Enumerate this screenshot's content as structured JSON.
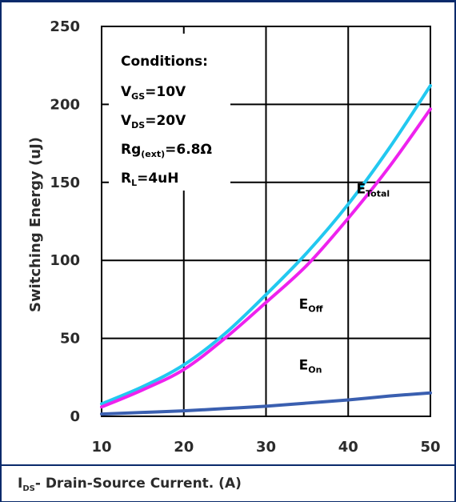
{
  "chart_data": {
    "type": "line",
    "xlabel": {
      "main": "I",
      "sub": "DS",
      "rest": "- Drain-Source Current. (A)"
    },
    "ylabel": "Switching Energy (uJ)",
    "xlim": [
      10,
      50
    ],
    "ylim": [
      0,
      250
    ],
    "x_ticks": [
      "10",
      "20",
      "30",
      "40",
      "50"
    ],
    "y_ticks": [
      "0",
      "50",
      "100",
      "150",
      "200",
      "250"
    ],
    "grid": true,
    "conditions": {
      "title": "Conditions:",
      "lines": [
        {
          "main": "V",
          "sub": "GS",
          "rest": "=10V"
        },
        {
          "main": "V",
          "sub": "DS",
          "rest": "=20V"
        },
        {
          "main": "Rg",
          "sub": "(ext)",
          "rest": "=6.8Ω"
        },
        {
          "main": "R",
          "sub": "L",
          "rest": "=4uH"
        }
      ]
    },
    "series": [
      {
        "name": "E_Total",
        "label_main": "E",
        "label_sub": "Total",
        "color": "#22c8f0",
        "x": [
          10,
          15,
          20,
          25,
          30,
          35,
          40,
          45,
          50
        ],
        "y": [
          8,
          19,
          33,
          53,
          78,
          105,
          136,
          172,
          212
        ]
      },
      {
        "name": "E_Off",
        "label_main": "E",
        "label_sub": "Off",
        "color": "#ee22ee",
        "x": [
          10,
          15,
          20,
          25,
          30,
          35,
          40,
          45,
          50
        ],
        "y": [
          6,
          17,
          30,
          50,
          73,
          97,
          127,
          160,
          197
        ]
      },
      {
        "name": "E_On",
        "label_main": "E",
        "label_sub": "On",
        "color": "#3a5fb0",
        "x": [
          10,
          15,
          20,
          25,
          30,
          35,
          40,
          45,
          50
        ],
        "y": [
          1.5,
          2.5,
          3.5,
          5,
          6.5,
          8.5,
          10.5,
          13,
          15
        ]
      }
    ],
    "series_label_anchor": {
      "E_Total": [
        41,
        143
      ],
      "E_Off": [
        34,
        69
      ],
      "E_On": [
        34,
        30
      ]
    }
  }
}
